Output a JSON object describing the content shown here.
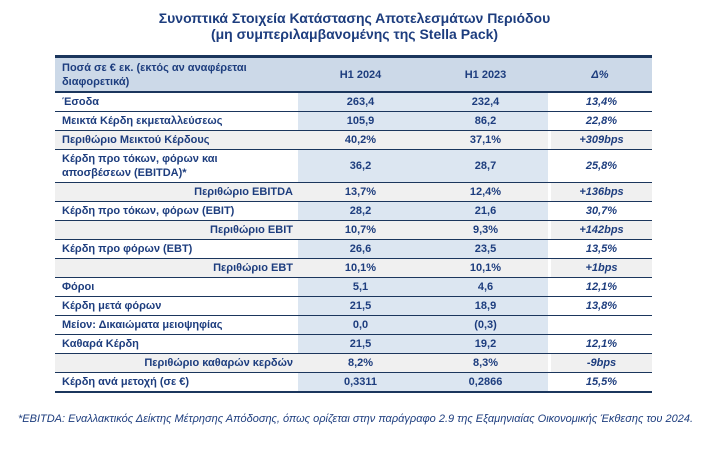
{
  "title": {
    "line1": "Συνοπτικά Στοιχεία Κατάστασης Αποτελεσμάτων Περιόδου",
    "line2": "(μη συμπεριλαμβανομένης της Stella Pack)"
  },
  "colors": {
    "text_navy": "#1D3D7E",
    "border_navy": "#1B365D",
    "header_bg": "#CCD9E8",
    "value_cell_blue": "#DCE6F1",
    "margin_row_gray": "#F0F0F0"
  },
  "table": {
    "columns": {
      "label": "Ποσά σε € εκ. (εκτός αν αναφέρεται διαφορετικά)",
      "h1_2024": "H1 2024",
      "h1_2023": "H1 2023",
      "delta": "Δ%"
    },
    "rows": [
      {
        "label": "Έσοδα",
        "h1_2024": "263,4",
        "h1_2023": "232,4",
        "delta": "13,4%",
        "type": "data",
        "label_align": "left"
      },
      {
        "label": "Μεικτά Κέρδη εκμεταλλεύσεως",
        "h1_2024": "105,9",
        "h1_2023": "86,2",
        "delta": "22,8%",
        "type": "data",
        "label_align": "left"
      },
      {
        "label": "Περιθώριο Μεικτού Κέρδους",
        "h1_2024": "40,2%",
        "h1_2023": "37,1%",
        "delta": "+309bps",
        "type": "margin",
        "label_align": "left"
      },
      {
        "label": "Κέρδη προ τόκων, φόρων και αποσβέσεων (EBITDA)*",
        "h1_2024": "36,2",
        "h1_2023": "28,7",
        "delta": "25,8%",
        "type": "data",
        "label_align": "left"
      },
      {
        "label": "Περιθώριο EBITDA",
        "h1_2024": "13,7%",
        "h1_2023": "12,4%",
        "delta": "+136bps",
        "type": "margin",
        "label_align": "right"
      },
      {
        "label": "Κέρδη προ τόκων, φόρων (EBIT)",
        "h1_2024": "28,2",
        "h1_2023": "21,6",
        "delta": "30,7%",
        "type": "data",
        "label_align": "left"
      },
      {
        "label": "Περιθώριο EBIT",
        "h1_2024": "10,7%",
        "h1_2023": "9,3%",
        "delta": "+142bps",
        "type": "margin",
        "label_align": "right"
      },
      {
        "label": "Κέρδη προ φόρων (EBT)",
        "h1_2024": "26,6",
        "h1_2023": "23,5",
        "delta": "13,5%",
        "type": "data",
        "label_align": "left"
      },
      {
        "label": "Περιθώριο EBT",
        "h1_2024": "10,1%",
        "h1_2023": "10,1%",
        "delta": "+1bps",
        "type": "margin",
        "label_align": "right"
      },
      {
        "label": "Φόροι",
        "h1_2024": "5,1",
        "h1_2023": "4,6",
        "delta": "12,1%",
        "type": "data",
        "label_align": "left"
      },
      {
        "label": "Κέρδη μετά φόρων",
        "h1_2024": "21,5",
        "h1_2023": "18,9",
        "delta": "13,8%",
        "type": "data",
        "label_align": "left"
      },
      {
        "label": "Μείον: Δικαιώματα μειοψηφίας",
        "h1_2024": "0,0",
        "h1_2023": "(0,3)",
        "delta": "",
        "type": "data",
        "label_align": "left"
      },
      {
        "label": "Καθαρά Κέρδη",
        "h1_2024": "21,5",
        "h1_2023": "19,2",
        "delta": "12,1%",
        "type": "data",
        "label_align": "left"
      },
      {
        "label": "Περιθώριο καθαρών κερδών",
        "h1_2024": "8,2%",
        "h1_2023": "8,3%",
        "delta": "-9bps",
        "type": "margin",
        "label_align": "right"
      },
      {
        "label": "Κέρδη ανά μετοχή (σε €)",
        "h1_2024": "0,3311",
        "h1_2023": "0,2866",
        "delta": "15,5%",
        "type": "data",
        "label_align": "left"
      }
    ]
  },
  "footnote": "*EBITDA: Εναλλακτικός Δείκτης Μέτρησης Απόδοσης, όπως ορίζεται στην παράγραφο 2.9 της Εξαμηνιαίας Οικονομικής Έκθεσης του 2024."
}
